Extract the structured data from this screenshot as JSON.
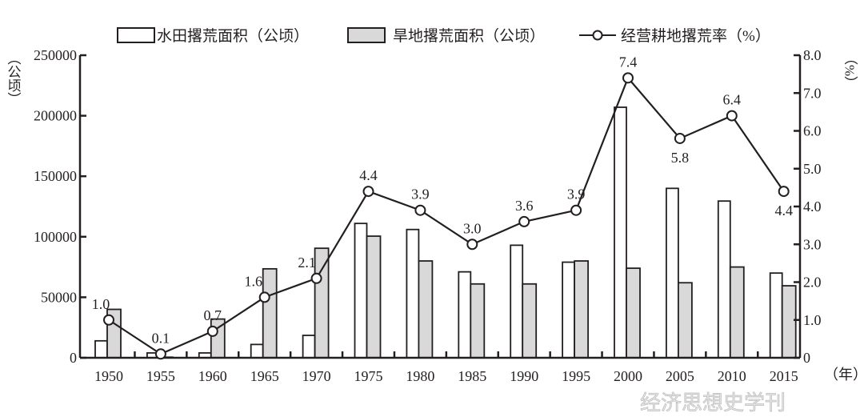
{
  "chart_data": {
    "type": "bar+line",
    "categories": [
      "1950",
      "1955",
      "1960",
      "1965",
      "1970",
      "1975",
      "1980",
      "1985",
      "1990",
      "1995",
      "2000",
      "2005",
      "2010",
      "2015"
    ],
    "series": [
      {
        "name": "水田撂荒面积（公顷）",
        "type": "bar",
        "axis": "left",
        "color": "#ffffff",
        "values": [
          14000,
          4000,
          4000,
          11000,
          18500,
          111000,
          106000,
          71000,
          93000,
          79000,
          207000,
          140000,
          129500,
          70000
        ]
      },
      {
        "name": "旱地撂荒面积（公顷）",
        "type": "bar",
        "axis": "left",
        "color": "#d9d9d9",
        "values": [
          40000,
          500,
          32000,
          73500,
          90500,
          100500,
          80000,
          61000,
          61000,
          80000,
          74000,
          62000,
          75000,
          59500
        ]
      },
      {
        "name": "经营耕地撂荒率（%）",
        "type": "line",
        "axis": "right",
        "color": "#231f20",
        "values": [
          1.0,
          0.1,
          0.7,
          1.6,
          2.1,
          4.4,
          3.9,
          3.0,
          3.6,
          3.9,
          7.4,
          5.8,
          6.4,
          4.4
        ],
        "labels": [
          "1.0",
          "0.1",
          "0.7",
          "1.6",
          "2.1",
          "4.4",
          "3.9",
          "3.0",
          "3.6",
          "3.9",
          "7.4",
          "5.8",
          "6.4",
          "4.4"
        ]
      }
    ],
    "ylabel_left": "（公顷）",
    "ylabel_right": "（%）",
    "xlabel": "（年）",
    "ylim_left": [
      0,
      250000
    ],
    "ylim_right": [
      0,
      8.0
    ],
    "yticks_left": [
      "0",
      "50000",
      "100000",
      "150000",
      "200000",
      "250000"
    ],
    "yticks_right": [
      "0",
      "1.0",
      "2.0",
      "3.0",
      "4.0",
      "5.0",
      "6.0",
      "7.0",
      "8.0"
    ],
    "grid": false,
    "legend_position": "top"
  },
  "watermark": "经济思想史学刊"
}
